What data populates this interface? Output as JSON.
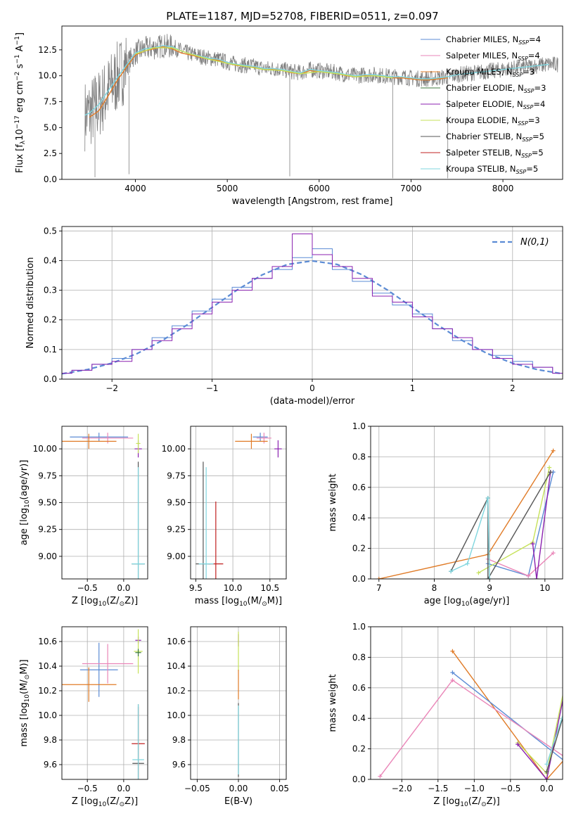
{
  "figure": {
    "title": "PLATE=1187, MJD=52708, FIBERID=0511, z=0.097"
  },
  "colors": {
    "Chabrier MILES": "#5b8bd5",
    "Salpeter MILES": "#ea86b8",
    "Kroupa MILES": "#e07b27",
    "Chabrier ELODIE": "#3c7a3c",
    "Salpeter ELODIE": "#8b22b0",
    "Kroupa ELODIE": "#c6e25a",
    "Chabrier STELIB": "#555555",
    "Salpeter STELIB": "#c02020",
    "Kroupa STELIB": "#7fd6df",
    "data": "#808080",
    "normal": "#5b8bd5"
  },
  "chart_data": [
    {
      "type": "line",
      "panel": "spectrum",
      "title": "PLATE=1187, MJD=52708, FIBERID=0511, z=0.097",
      "xlabel": "wavelength [Angstrom, rest frame]",
      "ylabel": "Flux [f_λ 10^-17 erg cm^-2 s^-1 A^-1]",
      "xlim": [
        3200,
        8650
      ],
      "ylim": [
        0,
        14.8
      ],
      "xticks": [
        4000,
        5000,
        6000,
        7000,
        8000
      ],
      "yticks": [
        0.0,
        2.5,
        5.0,
        7.5,
        10.0,
        12.5
      ],
      "legend": "top-right",
      "legend_entries": [
        "Chabrier MILES, N_SSP=4",
        "Salpeter MILES, N_SSP=4",
        "Kroupa MILES, N_SSP=3",
        "Chabrier ELODIE, N_SSP=3",
        "Salpeter ELODIE, N_SSP=4",
        "Kroupa ELODIE, N_SSP=3",
        "Chabrier STELIB, N_SSP=5",
        "Salpeter STELIB, N_SSP=5",
        "Kroupa STELIB, N_SSP=5"
      ],
      "series": [
        {
          "name": "Kroupa MILES",
          "x": [
            3500,
            3600,
            3700,
            3800,
            3900,
            4000,
            4100,
            4200,
            4300,
            4400,
            4500,
            4600,
            4700,
            4800,
            4900,
            5000,
            5100,
            5200,
            5300,
            5400,
            5500,
            5600,
            5700,
            5800,
            5900,
            6000,
            6100,
            6200,
            6300,
            6400,
            6500,
            6600,
            6700,
            6800,
            6900,
            7000,
            7100,
            7200,
            7300,
            7400
          ],
          "y": [
            6.0,
            6.6,
            8.0,
            9.5,
            10.8,
            12.0,
            12.4,
            12.6,
            12.8,
            12.6,
            12.2,
            12.0,
            11.8,
            11.6,
            11.5,
            11.2,
            11.0,
            10.9,
            10.8,
            10.6,
            10.6,
            10.5,
            10.3,
            10.2,
            10.5,
            10.4,
            10.3,
            10.2,
            10.0,
            9.9,
            10.0,
            10.0,
            9.9,
            9.8,
            9.8,
            9.7,
            9.6,
            9.6,
            9.7,
            9.8
          ]
        },
        {
          "name": "Kroupa STELIB",
          "x": [
            3450,
            3500,
            3600,
            3700,
            3800,
            3900,
            4000,
            4100,
            4200,
            4300,
            4400,
            4500,
            4600,
            4700,
            4800,
            4900,
            5000,
            5100,
            5200,
            5300,
            5400,
            5500,
            5600,
            5700,
            5800,
            5900,
            6000,
            6100,
            6200,
            6300,
            6400,
            6500,
            6600,
            6700,
            6800,
            6900,
            7000,
            7100,
            7200,
            7300,
            7400,
            7500,
            7600,
            7700,
            7800,
            7900,
            8000,
            8100,
            8200,
            8300,
            8400,
            8500
          ],
          "y": [
            6.2,
            6.4,
            7.2,
            8.5,
            9.8,
            11.0,
            12.2,
            12.6,
            12.7,
            12.9,
            12.8,
            12.4,
            12.1,
            11.9,
            11.7,
            11.6,
            11.3,
            11.1,
            11.0,
            10.9,
            10.7,
            10.7,
            10.6,
            10.4,
            10.3,
            10.6,
            10.5,
            10.4,
            10.3,
            10.1,
            10.0,
            10.1,
            10.1,
            10.0,
            9.9,
            9.9,
            9.8,
            9.7,
            9.7,
            9.8,
            9.9,
            10.1,
            10.2,
            10.3,
            10.4,
            10.5,
            10.6,
            10.7,
            10.8,
            10.9,
            11.0,
            11.1
          ]
        },
        {
          "name": "Kroupa ELODIE",
          "x": [
            4000,
            4200,
            4400,
            4600,
            4800,
            5000,
            5200,
            5400,
            5600,
            5800,
            6000,
            6200,
            6400,
            6600,
            6800
          ],
          "y": [
            12.1,
            12.7,
            12.7,
            12.1,
            11.6,
            11.2,
            10.9,
            10.6,
            10.5,
            10.2,
            10.4,
            10.2,
            9.9,
            10.0,
            9.8
          ]
        }
      ]
    },
    {
      "type": "line",
      "panel": "residual-histogram",
      "xlabel": "(data-model)/error",
      "ylabel": "Normed distribution",
      "xlim": [
        -2.5,
        2.5
      ],
      "ylim": [
        0,
        0.515
      ],
      "xticks": [
        -2,
        -1,
        0,
        1,
        2
      ],
      "yticks": [
        0.0,
        0.1,
        0.2,
        0.3,
        0.4,
        0.5
      ],
      "legend": "top-right",
      "legend_entries": [
        "N(0,1)"
      ],
      "series": [
        {
          "name": "N(0,1)",
          "x": [
            -2.5,
            -2.25,
            -2.0,
            -1.75,
            -1.5,
            -1.25,
            -1.0,
            -0.75,
            -0.5,
            -0.25,
            0,
            0.25,
            0.5,
            0.75,
            1.0,
            1.25,
            1.5,
            1.75,
            2.0,
            2.25,
            2.5
          ],
          "y": [
            0.018,
            0.032,
            0.054,
            0.086,
            0.13,
            0.183,
            0.242,
            0.301,
            0.352,
            0.387,
            0.399,
            0.387,
            0.352,
            0.301,
            0.242,
            0.183,
            0.13,
            0.086,
            0.054,
            0.032,
            0.018
          ]
        },
        {
          "name": "Chabrier MILES",
          "x": [
            -2.5,
            -2.3,
            -2.1,
            -1.9,
            -1.7,
            -1.5,
            -1.3,
            -1.1,
            -0.9,
            -0.7,
            -0.5,
            -0.3,
            -0.1,
            0.1,
            0.3,
            0.5,
            0.7,
            0.9,
            1.1,
            1.3,
            1.5,
            1.7,
            1.9,
            2.1,
            2.3,
            2.5
          ],
          "y": [
            0.02,
            0.03,
            0.05,
            0.07,
            0.1,
            0.14,
            0.18,
            0.23,
            0.27,
            0.31,
            0.34,
            0.37,
            0.41,
            0.44,
            0.37,
            0.33,
            0.29,
            0.25,
            0.22,
            0.17,
            0.13,
            0.1,
            0.08,
            0.06,
            0.04,
            0.02
          ]
        },
        {
          "name": "Salpeter ELODIE",
          "x": [
            -2.5,
            -2.3,
            -2.1,
            -1.9,
            -1.7,
            -1.5,
            -1.3,
            -1.1,
            -0.9,
            -0.7,
            -0.5,
            -0.3,
            -0.1,
            0.1,
            0.3,
            0.5,
            0.7,
            0.9,
            1.1,
            1.3,
            1.5,
            1.7,
            1.9,
            2.1,
            2.3,
            2.5
          ],
          "y": [
            0.02,
            0.03,
            0.05,
            0.06,
            0.1,
            0.13,
            0.17,
            0.22,
            0.26,
            0.3,
            0.34,
            0.38,
            0.49,
            0.42,
            0.38,
            0.34,
            0.28,
            0.26,
            0.21,
            0.17,
            0.14,
            0.1,
            0.07,
            0.05,
            0.04,
            0.02
          ]
        }
      ]
    },
    {
      "type": "scatter",
      "panel": "age-vs-Z",
      "xlabel": "Z [log10(Z/Z⊙)]",
      "ylabel": "age  [log10(age/yr)]",
      "xlim": [
        -0.85,
        0.33
      ],
      "ylim": [
        8.79,
        10.21
      ],
      "xticks": [
        -0.5,
        0.0
      ],
      "yticks": [
        9.0,
        9.25,
        9.5,
        9.75,
        10.0
      ],
      "points": [
        {
          "name": "Chabrier MILES",
          "x": -0.34,
          "y": 10.11,
          "xerr": 0.4,
          "yerr": 0.04
        },
        {
          "name": "Salpeter MILES",
          "x": -0.22,
          "y": 10.1,
          "xerr": 0.35,
          "yerr": 0.05
        },
        {
          "name": "Kroupa MILES",
          "x": -0.48,
          "y": 10.07,
          "xerr": 0.38,
          "yerr": 0.07
        },
        {
          "name": "Salpeter ELODIE",
          "x": 0.2,
          "y": 10.0,
          "xerr": 0.05,
          "yerr": 0.08
        },
        {
          "name": "Kroupa ELODIE",
          "x": 0.2,
          "y": 10.05,
          "xerr": 0.03,
          "yerr": 0.09
        },
        {
          "name": "Chabrier STELIB",
          "x": 0.2,
          "y": 8.93,
          "xerr": 0.09,
          "yerr": 0.95
        },
        {
          "name": "Kroupa STELIB",
          "x": 0.2,
          "y": 8.93,
          "xerr": 0.09,
          "yerr": 0.9
        }
      ]
    },
    {
      "type": "scatter",
      "panel": "age-vs-mass",
      "xlabel": "mass [log10(M/M⊙)]",
      "ylabel": "",
      "xlim": [
        9.43,
        10.72
      ],
      "ylim": [
        8.79,
        10.21
      ],
      "xticks": [
        9.5,
        10.0,
        10.5
      ],
      "yticks": [
        9.0,
        9.25,
        9.5,
        9.75,
        10.0
      ],
      "points": [
        {
          "name": "Chabrier MILES",
          "x": 10.37,
          "y": 10.11,
          "xerr": 0.1,
          "yerr": 0.04
        },
        {
          "name": "Salpeter MILES",
          "x": 10.42,
          "y": 10.1,
          "xerr": 0.1,
          "yerr": 0.05
        },
        {
          "name": "Kroupa MILES",
          "x": 10.25,
          "y": 10.07,
          "xerr": 0.22,
          "yerr": 0.07
        },
        {
          "name": "Salpeter ELODIE",
          "x": 10.61,
          "y": 10.0,
          "xerr": 0.05,
          "yerr": 0.08
        },
        {
          "name": "Chabrier STELIB",
          "x": 9.6,
          "y": 8.93,
          "xerr": 0.1,
          "yerr": 0.95
        },
        {
          "name": "Salpeter STELIB",
          "x": 9.77,
          "y": 8.93,
          "xerr": 0.1,
          "yerr": 0.58
        },
        {
          "name": "Kroupa STELIB",
          "x": 9.64,
          "y": 8.93,
          "xerr": 0.1,
          "yerr": 0.9
        }
      ]
    },
    {
      "type": "line",
      "panel": "mass-weight-vs-age",
      "xlabel": "age  [log10(age/yr)]",
      "ylabel": "mass weight",
      "xlim": [
        6.85,
        10.32
      ],
      "ylim": [
        0,
        1.0
      ],
      "xticks": [
        7,
        8,
        9,
        10
      ],
      "yticks": [
        0.0,
        0.2,
        0.4,
        0.6,
        0.8,
        1.0
      ],
      "series": [
        {
          "name": "Kroupa MILES",
          "x": [
            7.0,
            8.97,
            10.15
          ],
          "y": [
            0.0,
            0.16,
            0.84
          ]
        },
        {
          "name": "Chabrier MILES",
          "x": [
            8.97,
            9.7,
            10.15
          ],
          "y": [
            0.1,
            0.02,
            0.7
          ]
        },
        {
          "name": "Salpeter MILES",
          "x": [
            8.97,
            9.7,
            10.15
          ],
          "y": [
            0.13,
            0.02,
            0.17
          ]
        },
        {
          "name": "Kroupa ELODIE",
          "x": [
            8.8,
            9.78,
            10.08
          ],
          "y": [
            0.04,
            0.24,
            0.73
          ]
        },
        {
          "name": "Salpeter ELODIE",
          "x": [
            9.78,
            9.85,
            10.1
          ],
          "y": [
            0.23,
            0.0,
            0.7
          ]
        },
        {
          "name": "Chabrier STELIB",
          "x": [
            8.3,
            8.97,
            8.97,
            10.1
          ],
          "y": [
            0.05,
            0.53,
            0.0,
            0.7
          ]
        },
        {
          "name": "Kroupa STELIB",
          "x": [
            8.3,
            8.6,
            8.97,
            9.0
          ],
          "y": [
            0.05,
            0.1,
            0.53,
            0.0
          ]
        }
      ]
    },
    {
      "type": "scatter",
      "panel": "mass-vs-Z",
      "xlabel": "Z [log10(Z/Z⊙)]",
      "ylabel": "mass [log10(M/M⊙)]",
      "xlim": [
        -0.85,
        0.33
      ],
      "ylim": [
        9.48,
        10.72
      ],
      "xticks": [
        -0.5,
        0.0
      ],
      "yticks": [
        9.6,
        9.8,
        10.0,
        10.2,
        10.4,
        10.6
      ],
      "points": [
        {
          "name": "Chabrier MILES",
          "x": -0.34,
          "y": 10.37,
          "xerr": 0.26,
          "yerr": 0.22
        },
        {
          "name": "Salpeter MILES",
          "x": -0.22,
          "y": 10.42,
          "xerr": 0.35,
          "yerr": 0.16
        },
        {
          "name": "Kroupa MILES",
          "x": -0.48,
          "y": 10.25,
          "xerr": 0.38,
          "yerr": 0.14
        },
        {
          "name": "Salpeter ELODIE",
          "x": 0.2,
          "y": 10.61,
          "xerr": 0.04,
          "yerr": 0.03
        },
        {
          "name": "Kroupa ELODIE",
          "x": 0.2,
          "y": 10.52,
          "xerr": 0.06,
          "yerr": 0.18
        },
        {
          "name": "Chabrier ELODIE",
          "x": 0.2,
          "y": 10.51,
          "xerr": 0.04,
          "yerr": 0.03
        },
        {
          "name": "Chabrier STELIB",
          "x": 0.2,
          "y": 9.61,
          "xerr": 0.08,
          "yerr": 0.48
        },
        {
          "name": "Salpeter STELIB",
          "x": 0.2,
          "y": 9.77,
          "xerr": 0.09,
          "yerr": 0.3
        },
        {
          "name": "Kroupa STELIB",
          "x": 0.2,
          "y": 9.64,
          "xerr": 0.08,
          "yerr": 0.45
        }
      ]
    },
    {
      "type": "scatter",
      "panel": "mass-vs-EBV",
      "xlabel": "E(B-V)",
      "ylabel": "",
      "xlim": [
        -0.058,
        0.058
      ],
      "ylim": [
        9.48,
        10.72
      ],
      "xticks": [
        -0.05,
        0.0,
        0.05
      ],
      "yticks": [
        9.6,
        9.8,
        10.0,
        10.2,
        10.4,
        10.6
      ],
      "points": [
        {
          "name": "Salpeter ELODIE",
          "x": 0.0,
          "y": 10.61,
          "xerr": 0.0,
          "yerr": 0.05
        },
        {
          "name": "Kroupa ELODIE",
          "x": 0.0,
          "y": 10.52,
          "xerr": 0.0,
          "yerr": 0.16
        },
        {
          "name": "Kroupa MILES",
          "x": 0.0,
          "y": 10.25,
          "xerr": 0.0,
          "yerr": 0.12
        },
        {
          "name": "Chabrier STELIB",
          "x": 0.0,
          "y": 9.8,
          "xerr": 0.0,
          "yerr": 0.3
        },
        {
          "name": "Kroupa STELIB",
          "x": 0.0,
          "y": 9.8,
          "xerr": 0.0,
          "yerr": 0.28
        }
      ]
    },
    {
      "type": "line",
      "panel": "mass-weight-vs-Z",
      "xlabel": "Z [log10(Z/Z⊙)]",
      "ylabel": "mass weight",
      "xlim": [
        -2.43,
        0.22
      ],
      "ylim": [
        0,
        1.0
      ],
      "xticks": [
        -2.0,
        -1.5,
        -1.0,
        -0.5,
        0.0
      ],
      "yticks": [
        0.0,
        0.2,
        0.4,
        0.6,
        0.8,
        1.0
      ],
      "series": [
        {
          "name": "Kroupa MILES",
          "x": [
            -1.3,
            0.0,
            0.3
          ],
          "y": [
            0.84,
            0.0,
            0.16
          ]
        },
        {
          "name": "Chabrier MILES",
          "x": [
            -1.3,
            0.3
          ],
          "y": [
            0.7,
            0.1
          ]
        },
        {
          "name": "Salpeter MILES",
          "x": [
            -2.3,
            -1.3,
            0.3
          ],
          "y": [
            0.02,
            0.65,
            0.13
          ]
        },
        {
          "name": "Kroupa ELODIE",
          "x": [
            -0.4,
            0.0,
            0.3
          ],
          "y": [
            0.24,
            0.04,
            0.73
          ]
        },
        {
          "name": "Salpeter ELODIE",
          "x": [
            -0.4,
            0.0,
            0.3
          ],
          "y": [
            0.23,
            0.0,
            0.7
          ]
        },
        {
          "name": "Chabrier STELIB",
          "x": [
            0.0,
            0.3,
            0.3
          ],
          "y": [
            0.05,
            0.53,
            0.11
          ]
        },
        {
          "name": "Kroupa STELIB",
          "x": [
            0.0,
            0.3
          ],
          "y": [
            0.1,
            0.53
          ]
        }
      ]
    }
  ]
}
